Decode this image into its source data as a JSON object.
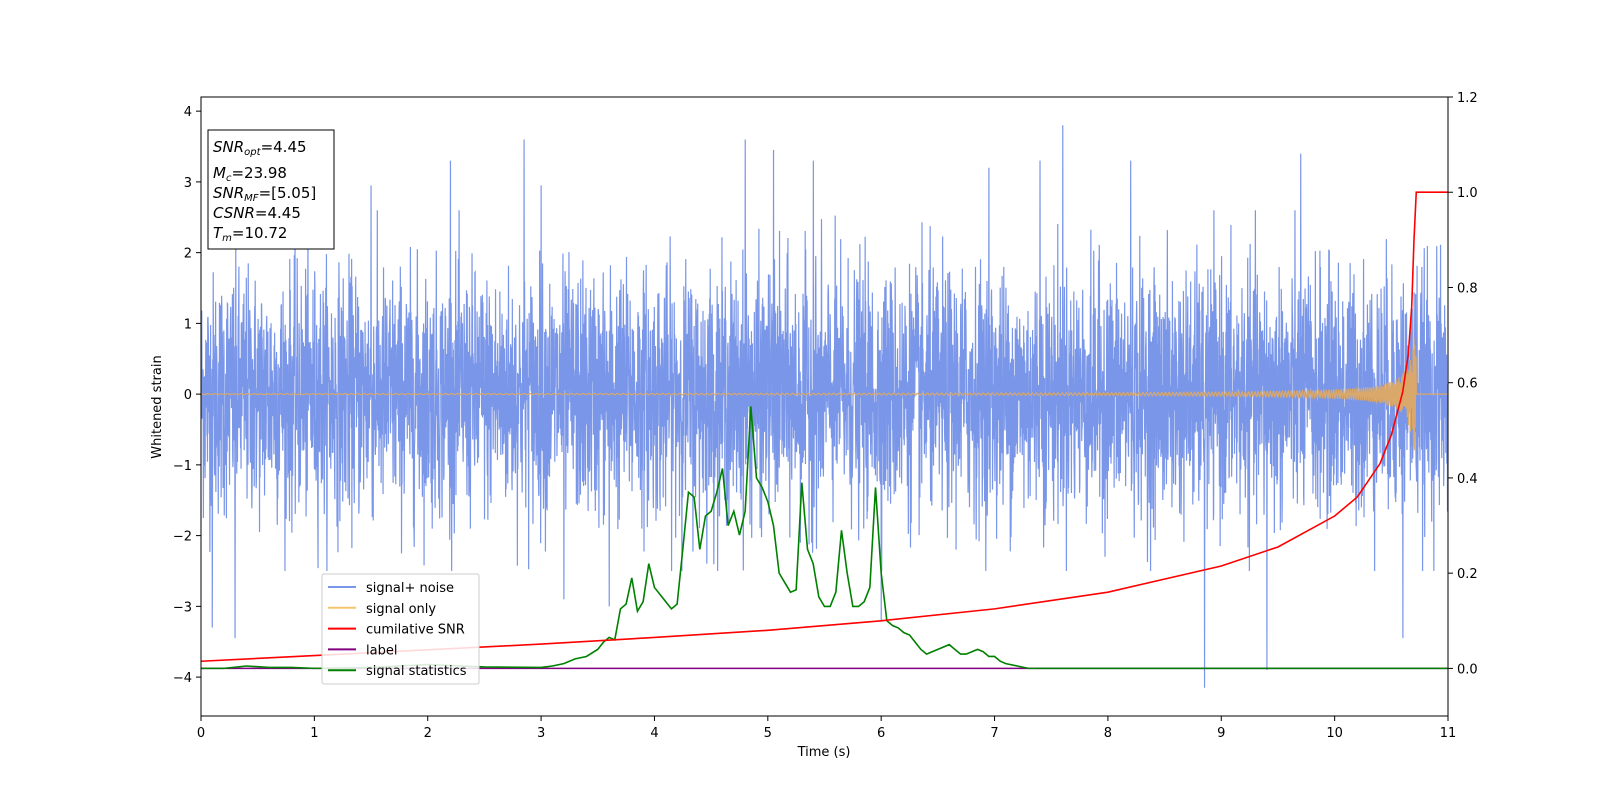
{
  "chart_data": {
    "type": "line",
    "xlabel": "Time (s)",
    "ylabel": "Whitened strain",
    "xlim": [
      0,
      11
    ],
    "ylim_left": [
      -4.55,
      4.2
    ],
    "ylim_right": [
      -0.1,
      1.2
    ],
    "x_ticks": [
      0,
      1,
      2,
      3,
      4,
      5,
      6,
      7,
      8,
      9,
      10,
      11
    ],
    "y_ticks_left": [
      -4,
      -3,
      -2,
      -1,
      0,
      1,
      2,
      3,
      4
    ],
    "y_ticks_right": [
      0.0,
      0.2,
      0.4,
      0.6,
      0.8,
      1.0,
      1.2
    ],
    "grid": false,
    "legend_position": "lower-left",
    "textbox": {
      "snr_opt": {
        "label": "SNR",
        "sub": "opt",
        "value": "=4.45"
      },
      "mc": {
        "label": "M",
        "sub": "c",
        "value": "=23.98"
      },
      "snr_mf": {
        "label": "SNR",
        "sub": "MF",
        "value": "=[5.05]"
      },
      "csnr": {
        "label": "CSNR",
        "sub": "",
        "value": "=4.45"
      },
      "tm": {
        "label": "T",
        "sub": "m",
        "value": "=10.72"
      }
    },
    "series": [
      {
        "name": "signal+ noise",
        "color": "#7a96e8",
        "axis": "left",
        "description_values": "whitened noise band roughly between -2.4 and 2.5 with spikes up to 3.8 and down to -4.15",
        "noise_envelope": {
          "typical_min": -2.4,
          "typical_max": 2.5,
          "max": 3.8,
          "min": -4.15
        },
        "spikes": [
          [
            0.3,
            -3.45
          ],
          [
            0.1,
            -3.3
          ],
          [
            1.5,
            2.95
          ],
          [
            2.2,
            3.3
          ],
          [
            2.85,
            3.6
          ],
          [
            3.0,
            2.95
          ],
          [
            3.2,
            -2.9
          ],
          [
            3.6,
            -3.0
          ],
          [
            4.8,
            3.6
          ],
          [
            5.05,
            3.45
          ],
          [
            5.4,
            3.3
          ],
          [
            6.0,
            -3.2
          ],
          [
            6.95,
            3.2
          ],
          [
            7.4,
            3.3
          ],
          [
            7.6,
            3.8
          ],
          [
            8.2,
            3.3
          ],
          [
            8.85,
            -4.15
          ],
          [
            9.4,
            -3.9
          ],
          [
            9.7,
            3.4
          ],
          [
            10.6,
            -3.45
          ]
        ]
      },
      {
        "name": "signal only",
        "color": "#f5c56e",
        "axis": "left",
        "chirp": {
          "t_merger": 10.72,
          "peak_amplitude": 0.9
        }
      },
      {
        "name": "cumilative SNR",
        "color": "#ff0000",
        "axis": "right",
        "x": [
          0,
          1,
          2,
          3,
          4,
          5,
          6,
          7,
          8,
          9,
          9.5,
          10,
          10.2,
          10.4,
          10.5,
          10.6,
          10.65,
          10.68,
          10.7,
          10.72,
          11
        ],
        "y": [
          0.015,
          0.027,
          0.039,
          0.051,
          0.065,
          0.08,
          0.1,
          0.125,
          0.16,
          0.215,
          0.255,
          0.32,
          0.36,
          0.43,
          0.49,
          0.58,
          0.66,
          0.76,
          0.9,
          1.0,
          1.0
        ]
      },
      {
        "name": "label",
        "color": "#800080",
        "axis": "right",
        "x": [
          0,
          11
        ],
        "y": [
          0,
          0
        ]
      },
      {
        "name": "signal statistics",
        "color": "#008000",
        "axis": "right",
        "x": [
          0,
          0.2,
          0.4,
          0.6,
          0.8,
          1.0,
          1.5,
          2.0,
          2.5,
          3.0,
          3.1,
          3.2,
          3.3,
          3.4,
          3.5,
          3.55,
          3.6,
          3.65,
          3.7,
          3.75,
          3.8,
          3.85,
          3.9,
          3.95,
          4.0,
          4.05,
          4.1,
          4.15,
          4.2,
          4.25,
          4.3,
          4.35,
          4.4,
          4.45,
          4.5,
          4.55,
          4.6,
          4.65,
          4.7,
          4.75,
          4.8,
          4.85,
          4.9,
          4.95,
          5.0,
          5.05,
          5.1,
          5.15,
          5.2,
          5.25,
          5.3,
          5.35,
          5.4,
          5.45,
          5.5,
          5.55,
          5.6,
          5.65,
          5.7,
          5.75,
          5.8,
          5.85,
          5.9,
          5.95,
          6.0,
          6.05,
          6.1,
          6.15,
          6.2,
          6.25,
          6.3,
          6.35,
          6.4,
          6.45,
          6.5,
          6.55,
          6.6,
          6.65,
          6.7,
          6.75,
          6.8,
          6.85,
          6.9,
          6.95,
          7.0,
          7.05,
          7.1,
          7.2,
          7.3,
          7.4,
          7.45,
          7.5,
          7.6,
          7.7,
          7.8,
          7.9,
          8.0,
          8.05,
          8.1,
          8.15,
          8.2,
          8.25,
          8.3,
          8.35,
          8.4,
          8.45,
          8.5,
          8.6,
          8.8,
          9.0,
          9.5,
          10.0,
          10.5,
          11.0
        ],
        "y": [
          0,
          0,
          0.005,
          0.002,
          0.002,
          0,
          0.002,
          0.008,
          0.003,
          0.002,
          0.005,
          0.01,
          0.02,
          0.025,
          0.04,
          0.055,
          0.065,
          0.06,
          0.125,
          0.135,
          0.19,
          0.12,
          0.14,
          0.22,
          0.17,
          0.155,
          0.14,
          0.125,
          0.135,
          0.25,
          0.37,
          0.36,
          0.25,
          0.32,
          0.33,
          0.37,
          0.42,
          0.3,
          0.33,
          0.28,
          0.33,
          0.55,
          0.4,
          0.38,
          0.35,
          0.3,
          0.2,
          0.18,
          0.16,
          0.165,
          0.39,
          0.25,
          0.22,
          0.15,
          0.13,
          0.13,
          0.16,
          0.29,
          0.2,
          0.13,
          0.13,
          0.14,
          0.17,
          0.38,
          0.2,
          0.1,
          0.09,
          0.085,
          0.075,
          0.07,
          0.055,
          0.04,
          0.03,
          0.035,
          0.04,
          0.045,
          0.05,
          0.04,
          0.03,
          0.03,
          0.035,
          0.04,
          0.035,
          0.025,
          0.025,
          0.015,
          0.01,
          0.005,
          0.0,
          0.0,
          0.0,
          0.0,
          0.0,
          0.0,
          0.0,
          0.0,
          0.0,
          0.0,
          0.0,
          0.0,
          0.0,
          0.0,
          0.0,
          0.0,
          0.0,
          0.0,
          0.0,
          0.0,
          0.0,
          0.0,
          0.0,
          0.0,
          0.0,
          0.0
        ]
      }
    ]
  }
}
